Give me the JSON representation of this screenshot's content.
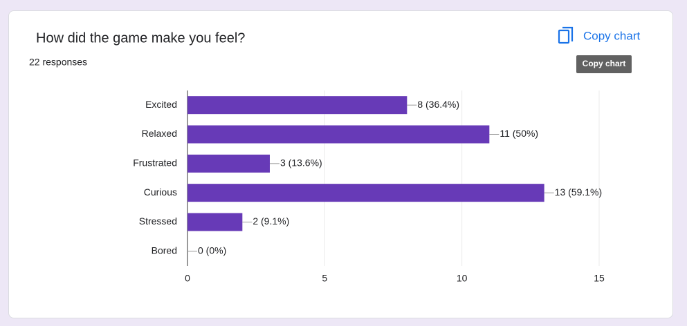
{
  "chart_data": {
    "type": "barh",
    "title": "How did the game make you feel?",
    "subtitle": "22 responses",
    "categories": [
      "Excited",
      "Relaxed",
      "Frustrated",
      "Curious",
      "Stressed",
      "Bored"
    ],
    "values": [
      8,
      11,
      3,
      13,
      2,
      0
    ],
    "value_labels": [
      "8 (36.4%)",
      "11 (50%)",
      "3 (13.6%)",
      "13 (59.1%)",
      "2 (9.1%)",
      "0 (0%)"
    ],
    "color": "#673ab7",
    "xlim": [
      0,
      15
    ],
    "xticks": [
      0,
      5,
      10,
      15
    ],
    "grid": true
  },
  "toolbar": {
    "button": "Copy chart",
    "tooltip": "Copy chart"
  }
}
